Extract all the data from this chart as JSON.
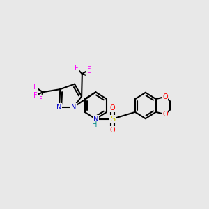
{
  "bg_color": "#e8e8e8",
  "bond_color": "#000000",
  "bond_width": 1.5,
  "atom_colors": {
    "N": "#0000cc",
    "O": "#ff0000",
    "S": "#cccc00",
    "F": "#ff00ff",
    "H": "#008888",
    "C": "#000000"
  },
  "font_size": 7.0
}
